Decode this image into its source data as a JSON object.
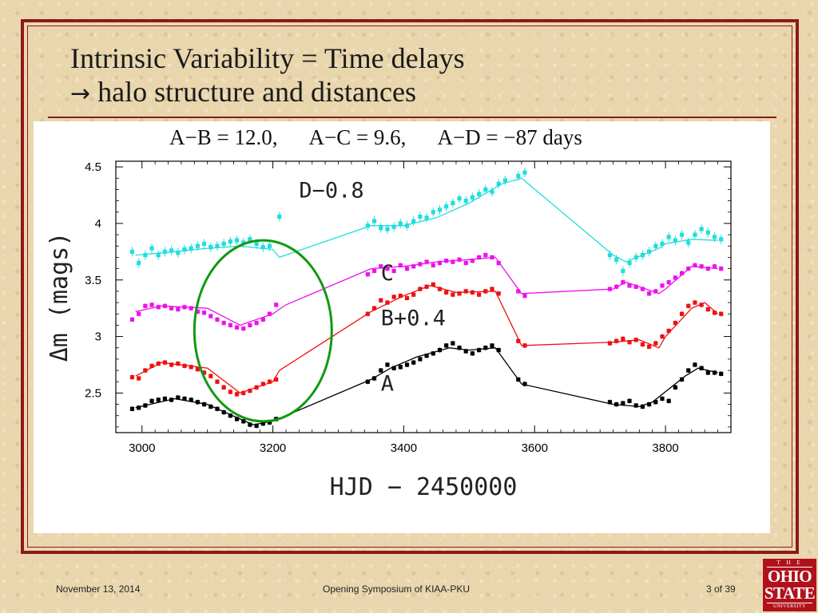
{
  "slide": {
    "title_line1": "Intrinsic Variability = Time delays",
    "title_arrow": "→",
    "title_line2": " halo structure and distances",
    "delays": "A−B = 12.0,      A−C = 9.6,      A−D = −87 days",
    "footer_date": "November 13, 2014",
    "footer_event": "Opening Symposium of KIAA-PKU",
    "footer_page": "3 of 39",
    "logo": {
      "the": "T H E",
      "ohio": "OHIO",
      "state": "STATE",
      "university": "UNIVERSITY"
    }
  },
  "colors": {
    "frame": "#8b1a1a",
    "background": "#e9d6ad",
    "A": "#000000",
    "B": "#ee1111",
    "C": "#ee11ee",
    "D": "#22dddd",
    "ellipse": "#119911",
    "logo": "#b0121b"
  },
  "chart_data": {
    "type": "scatter",
    "xlabel": "HJD − 2450000",
    "ylabel": "Δm (mags)",
    "xlim": [
      2960,
      3900
    ],
    "ylim": [
      4.55,
      2.15
    ],
    "y_inverted": true,
    "xticks": [
      3000,
      3200,
      3400,
      3600,
      3800
    ],
    "yticks": [
      2.5,
      3,
      3.5,
      4,
      4.5
    ],
    "ytick_labels": [
      "2.5",
      "3",
      "3.5",
      "4",
      "4.5"
    ],
    "highlight_ellipse": {
      "x_center": 3185,
      "y_center": 3.05,
      "x_halfwidth": 105,
      "y_halfheight": 0.8
    },
    "series": [
      {
        "name": "A",
        "color": "#000000",
        "label_pos": [
          3365,
          2.52
        ],
        "fit_x": [
          2990,
          3050,
          3100,
          3150,
          3170,
          3200,
          3350,
          3380,
          3420,
          3470,
          3500,
          3540,
          3580,
          3720,
          3760,
          3780,
          3830,
          3850,
          3880
        ],
        "fit_y": [
          2.37,
          2.45,
          2.4,
          2.27,
          2.22,
          2.25,
          2.62,
          2.72,
          2.82,
          2.9,
          2.88,
          2.9,
          2.58,
          2.4,
          2.38,
          2.42,
          2.65,
          2.72,
          2.68
        ],
        "x": [
          2985,
          2995,
          3005,
          3015,
          3025,
          3035,
          3045,
          3055,
          3065,
          3075,
          3085,
          3095,
          3105,
          3115,
          3125,
          3135,
          3145,
          3155,
          3165,
          3175,
          3185,
          3195,
          3205,
          3345,
          3355,
          3365,
          3375,
          3385,
          3395,
          3405,
          3415,
          3425,
          3435,
          3445,
          3455,
          3465,
          3475,
          3485,
          3495,
          3505,
          3515,
          3525,
          3535,
          3545,
          3575,
          3585,
          3715,
          3725,
          3735,
          3745,
          3755,
          3765,
          3775,
          3785,
          3795,
          3805,
          3815,
          3825,
          3835,
          3845,
          3855,
          3865,
          3875,
          3885
        ],
        "y": [
          2.36,
          2.37,
          2.39,
          2.43,
          2.44,
          2.45,
          2.44,
          2.46,
          2.45,
          2.44,
          2.42,
          2.4,
          2.38,
          2.36,
          2.33,
          2.3,
          2.27,
          2.25,
          2.22,
          2.21,
          2.23,
          2.24,
          2.27,
          2.6,
          2.63,
          2.7,
          2.75,
          2.72,
          2.73,
          2.75,
          2.77,
          2.8,
          2.83,
          2.85,
          2.88,
          2.92,
          2.94,
          2.9,
          2.87,
          2.85,
          2.88,
          2.9,
          2.92,
          2.88,
          2.62,
          2.58,
          2.42,
          2.4,
          2.41,
          2.43,
          2.39,
          2.38,
          2.4,
          2.42,
          2.45,
          2.43,
          2.55,
          2.62,
          2.7,
          2.75,
          2.72,
          2.68,
          2.68,
          2.67
        ]
      },
      {
        "name": "B+0.4",
        "color": "#ee1111",
        "label_pos": [
          3365,
          3.1
        ],
        "fit_x": [
          2990,
          3030,
          3100,
          3150,
          3200,
          3210,
          3350,
          3400,
          3440,
          3480,
          3540,
          3580,
          3720,
          3760,
          3790,
          3800,
          3840,
          3860,
          3880
        ],
        "fit_y": [
          2.65,
          2.77,
          2.72,
          2.5,
          2.6,
          2.7,
          3.22,
          3.36,
          3.45,
          3.39,
          3.4,
          2.92,
          2.95,
          2.97,
          2.9,
          3.0,
          3.25,
          3.3,
          3.2
        ],
        "x": [
          2985,
          2995,
          3005,
          3015,
          3025,
          3035,
          3045,
          3055,
          3065,
          3075,
          3085,
          3095,
          3105,
          3115,
          3125,
          3135,
          3145,
          3155,
          3165,
          3175,
          3185,
          3195,
          3205,
          3345,
          3355,
          3365,
          3375,
          3385,
          3395,
          3405,
          3415,
          3425,
          3435,
          3445,
          3455,
          3465,
          3475,
          3485,
          3495,
          3505,
          3515,
          3525,
          3535,
          3545,
          3575,
          3585,
          3715,
          3725,
          3735,
          3745,
          3755,
          3765,
          3775,
          3785,
          3795,
          3805,
          3815,
          3825,
          3835,
          3845,
          3855,
          3865,
          3875,
          3885
        ],
        "y": [
          2.64,
          2.63,
          2.7,
          2.74,
          2.76,
          2.77,
          2.75,
          2.76,
          2.74,
          2.73,
          2.71,
          2.68,
          2.65,
          2.6,
          2.55,
          2.51,
          2.49,
          2.5,
          2.52,
          2.55,
          2.58,
          2.6,
          2.62,
          3.2,
          3.25,
          3.32,
          3.3,
          3.35,
          3.36,
          3.34,
          3.37,
          3.42,
          3.44,
          3.46,
          3.42,
          3.39,
          3.37,
          3.38,
          3.4,
          3.39,
          3.37,
          3.4,
          3.42,
          3.38,
          2.96,
          2.92,
          2.94,
          2.96,
          2.98,
          2.95,
          2.97,
          2.93,
          2.91,
          2.94,
          3.0,
          3.05,
          3.12,
          3.2,
          3.27,
          3.3,
          3.28,
          3.24,
          3.21,
          3.2
        ]
      },
      {
        "name": "C",
        "color": "#ee11ee",
        "label_pos": [
          3365,
          3.5
        ],
        "fit_x": [
          2990,
          3030,
          3100,
          3150,
          3200,
          3220,
          3350,
          3400,
          3450,
          3500,
          3540,
          3580,
          3720,
          3740,
          3790,
          3800,
          3840,
          3880
        ],
        "fit_y": [
          3.22,
          3.27,
          3.25,
          3.1,
          3.2,
          3.28,
          3.6,
          3.62,
          3.66,
          3.68,
          3.7,
          3.38,
          3.42,
          3.48,
          3.38,
          3.42,
          3.62,
          3.6
        ],
        "x": [
          2985,
          2995,
          3005,
          3015,
          3025,
          3035,
          3045,
          3055,
          3065,
          3075,
          3085,
          3095,
          3105,
          3115,
          3125,
          3135,
          3145,
          3155,
          3165,
          3175,
          3185,
          3195,
          3205,
          3345,
          3355,
          3365,
          3375,
          3385,
          3395,
          3405,
          3415,
          3425,
          3435,
          3445,
          3455,
          3465,
          3475,
          3485,
          3495,
          3505,
          3515,
          3525,
          3535,
          3545,
          3575,
          3585,
          3715,
          3725,
          3735,
          3745,
          3755,
          3765,
          3775,
          3785,
          3795,
          3805,
          3815,
          3825,
          3835,
          3845,
          3855,
          3865,
          3875,
          3885
        ],
        "y": [
          3.15,
          3.2,
          3.27,
          3.28,
          3.26,
          3.27,
          3.25,
          3.24,
          3.26,
          3.25,
          3.22,
          3.21,
          3.18,
          3.15,
          3.12,
          3.1,
          3.08,
          3.07,
          3.1,
          3.12,
          3.15,
          3.2,
          3.28,
          3.55,
          3.58,
          3.62,
          3.6,
          3.58,
          3.63,
          3.6,
          3.62,
          3.64,
          3.66,
          3.63,
          3.65,
          3.67,
          3.66,
          3.68,
          3.65,
          3.67,
          3.7,
          3.72,
          3.7,
          3.65,
          3.4,
          3.36,
          3.42,
          3.44,
          3.48,
          3.45,
          3.44,
          3.42,
          3.38,
          3.4,
          3.45,
          3.48,
          3.52,
          3.56,
          3.6,
          3.63,
          3.62,
          3.6,
          3.62,
          3.6
        ]
      },
      {
        "name": "D−0.8",
        "color": "#22dddd",
        "label_pos": [
          3240,
          4.23
        ],
        "fit_x": [
          2990,
          3050,
          3100,
          3150,
          3200,
          3210,
          3350,
          3400,
          3450,
          3500,
          3550,
          3580,
          3720,
          3740,
          3790,
          3800,
          3840,
          3880
        ],
        "fit_y": [
          3.72,
          3.75,
          3.78,
          3.8,
          3.77,
          3.7,
          3.98,
          3.98,
          4.05,
          4.18,
          4.35,
          4.4,
          3.72,
          3.66,
          3.78,
          3.82,
          3.86,
          3.85
        ],
        "x": [
          2985,
          2995,
          3005,
          3015,
          3025,
          3035,
          3045,
          3055,
          3065,
          3075,
          3085,
          3095,
          3105,
          3115,
          3125,
          3135,
          3145,
          3155,
          3165,
          3175,
          3185,
          3195,
          3210,
          3345,
          3355,
          3365,
          3375,
          3385,
          3395,
          3405,
          3415,
          3425,
          3435,
          3445,
          3455,
          3465,
          3475,
          3485,
          3495,
          3505,
          3515,
          3525,
          3535,
          3545,
          3555,
          3575,
          3585,
          3715,
          3725,
          3735,
          3745,
          3755,
          3765,
          3775,
          3785,
          3795,
          3805,
          3815,
          3825,
          3835,
          3845,
          3855,
          3865,
          3875,
          3885
        ],
        "y": [
          3.75,
          3.65,
          3.72,
          3.78,
          3.72,
          3.75,
          3.76,
          3.74,
          3.77,
          3.78,
          3.8,
          3.82,
          3.79,
          3.8,
          3.82,
          3.84,
          3.85,
          3.83,
          3.86,
          3.82,
          3.79,
          3.8,
          4.06,
          3.98,
          4.02,
          3.96,
          3.95,
          3.97,
          4.0,
          3.98,
          4.02,
          4.06,
          4.05,
          4.1,
          4.12,
          4.15,
          4.18,
          4.22,
          4.2,
          4.23,
          4.26,
          4.3,
          4.28,
          4.35,
          4.38,
          4.42,
          4.45,
          3.72,
          3.68,
          3.58,
          3.65,
          3.7,
          3.72,
          3.75,
          3.8,
          3.82,
          3.88,
          3.85,
          3.9,
          3.83,
          3.9,
          3.95,
          3.92,
          3.88,
          3.86
        ]
      }
    ]
  }
}
